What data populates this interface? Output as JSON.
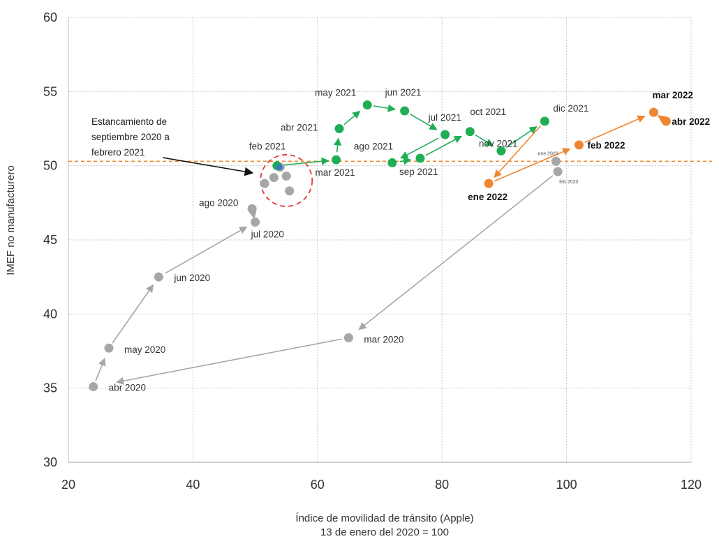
{
  "chart_data": {
    "type": "scatter",
    "xlabel": "Índice de movilidad de tránsito (Apple)",
    "xlabel2": "13 de enero del 2020 = 100",
    "ylabel": "IMEF no manufacturero",
    "xlim": [
      20,
      120
    ],
    "ylim": [
      30,
      60
    ],
    "xticks": [
      20,
      40,
      60,
      80,
      100,
      120
    ],
    "yticks": [
      30,
      35,
      40,
      45,
      50,
      55,
      60
    ],
    "grid": true,
    "reference_line": {
      "y": 50.3,
      "style": "dashed",
      "color": "#f08a2c"
    },
    "colors": {
      "gray_series": "#a6a6a6",
      "green_series": "#1fae55",
      "orange_series": "#ee8530",
      "circle": "#e53935",
      "annotation_arrow": "#111111"
    },
    "annotation": {
      "lines": [
        "Estancamiento de",
        "septiembre 2020 a",
        "febrero 2021"
      ]
    },
    "series": [
      {
        "points": [
          {
            "x": 98.3,
            "y": 50.3,
            "label": "ene 2020"
          },
          {
            "x": 98.6,
            "y": 49.6,
            "label": "feb 2020"
          },
          {
            "x": 65.0,
            "y": 38.4,
            "label": "mar 2020"
          },
          {
            "x": 24.0,
            "y": 35.1,
            "label": "abr 2020"
          },
          {
            "x": 26.5,
            "y": 37.7,
            "label": "may 2020"
          },
          {
            "x": 34.5,
            "y": 42.5,
            "label": "jun 2020"
          },
          {
            "x": 50.0,
            "y": 46.2,
            "label": "jul 2020"
          },
          {
            "x": 49.5,
            "y": 47.1,
            "label": "ago 2020"
          },
          {
            "x": 51.5,
            "y": 48.8,
            "label": ""
          },
          {
            "x": 53.0,
            "y": 49.2,
            "label": ""
          },
          {
            "x": 55.0,
            "y": 49.3,
            "label": ""
          },
          {
            "x": 55.5,
            "y": 48.3,
            "label": ""
          },
          {
            "x": 54.0,
            "y": 49.9,
            "label": ""
          }
        ]
      },
      {
        "points": [
          {
            "x": 53.5,
            "y": 50.0,
            "label": "feb 2021"
          },
          {
            "x": 63.0,
            "y": 50.4,
            "label": "mar 2021"
          },
          {
            "x": 63.5,
            "y": 52.5,
            "label": "abr 2021"
          },
          {
            "x": 68.0,
            "y": 54.1,
            "label": "may 2021"
          },
          {
            "x": 74.0,
            "y": 53.7,
            "label": "jun 2021"
          },
          {
            "x": 80.5,
            "y": 52.1,
            "label": "jul 2021"
          },
          {
            "x": 72.0,
            "y": 50.2,
            "label": "ago 2021"
          },
          {
            "x": 76.5,
            "y": 50.5,
            "label": "sep 2021"
          },
          {
            "x": 84.5,
            "y": 52.3,
            "label": "oct 2021"
          },
          {
            "x": 89.5,
            "y": 51.0,
            "label": "nov 2021"
          },
          {
            "x": 96.5,
            "y": 53.0,
            "label": "dic 2021"
          }
        ]
      },
      {
        "points": [
          {
            "x": 87.5,
            "y": 48.8,
            "label": "ene 2022"
          },
          {
            "x": 102.0,
            "y": 51.4,
            "label": "feb 2022"
          },
          {
            "x": 114.0,
            "y": 53.6,
            "label": "mar 2022"
          },
          {
            "x": 116.0,
            "y": 53.0,
            "label": "abr 2022"
          }
        ]
      }
    ]
  }
}
